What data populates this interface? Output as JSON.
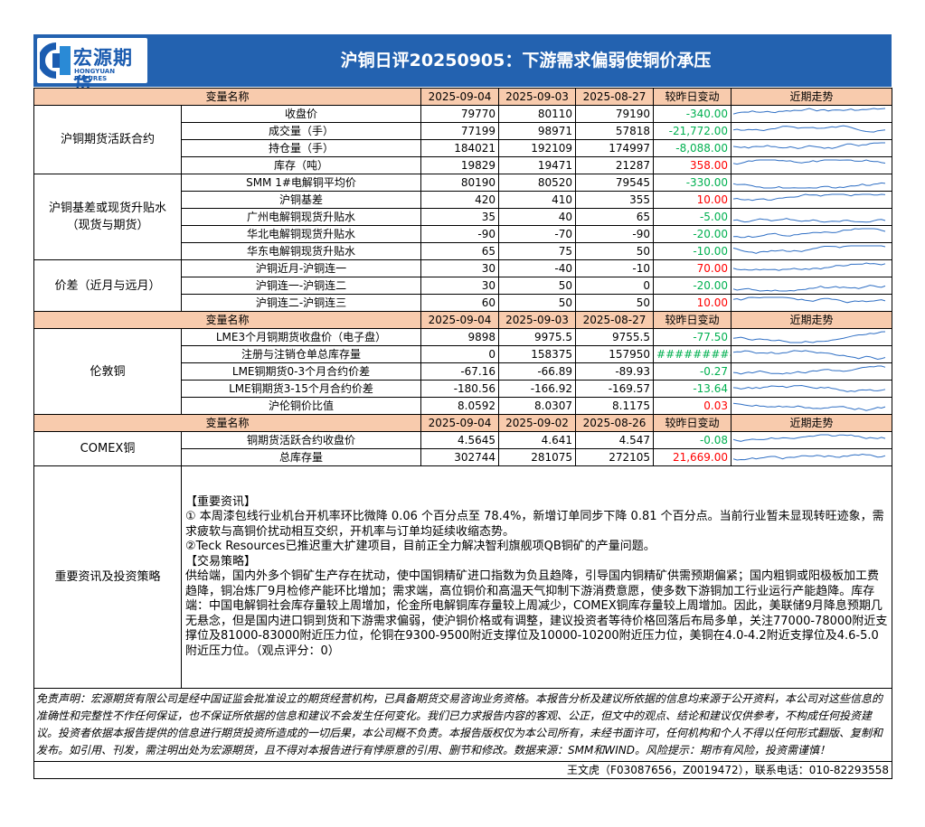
{
  "header": {
    "logo_cn": "宏源期货",
    "logo_en": "HONGYUAN FUTURES",
    "title": "沪铜日评20250905：下游需求偏弱使铜价承压"
  },
  "table": {
    "sections": [
      {
        "header": [
          "变量名称",
          "2025-09-04",
          "2025-09-03",
          "2025-08-27",
          "较昨日变动",
          "近期走势"
        ],
        "groups": [
          {
            "name": [
              "沪铜期货活跃合约"
            ],
            "rows": [
              [
                "收盘价",
                "79770",
                "80110",
                "79190",
                "-340.00"
              ],
              [
                "成交量（手）",
                "77199",
                "98971",
                "57818",
                "-21,772.00"
              ],
              [
                "持仓量（手）",
                "184021",
                "192109",
                "174997",
                "-8,088.00"
              ],
              [
                "库存（吨）",
                "19829",
                "19471",
                "21287",
                "358.00"
              ]
            ]
          },
          {
            "name": [
              "沪铜基差或现货升贴水",
              "（现货与期货）"
            ],
            "rows": [
              [
                "SMM 1#电解铜平均价",
                "80190",
                "80520",
                "79545",
                "-330.00"
              ],
              [
                "沪铜基差",
                "420",
                "410",
                "355",
                "10.00"
              ],
              [
                "广州电解铜现货升贴水",
                "35",
                "40",
                "65",
                "-5.00"
              ],
              [
                "华北电解铜现货升贴水",
                "-90",
                "-70",
                "-90",
                "-20.00"
              ],
              [
                "华东电解铜现货升贴水",
                "65",
                "75",
                "50",
                "-10.00"
              ]
            ]
          },
          {
            "name": [
              "价差（近月与远月）"
            ],
            "rows": [
              [
                "沪铜近月-沪铜连一",
                "30",
                "-40",
                "-10",
                "70.00"
              ],
              [
                "沪铜连一-沪铜连二",
                "30",
                "50",
                "0",
                "-20.00"
              ],
              [
                "沪铜连二-沪铜连三",
                "60",
                "50",
                "50",
                "10.00"
              ]
            ]
          }
        ]
      },
      {
        "header": [
          "变量名称",
          "2025-09-04",
          "2025-09-03",
          "2025-08-27",
          "较昨日变动",
          "近期走势"
        ],
        "groups": [
          {
            "name": [
              "伦敦铜"
            ],
            "rows": [
              [
                "LME3个月铜期货收盘价（电子盘）",
                "9898",
                "9975.5",
                "9755.5",
                "-77.50"
              ],
              [
                "注册与注销仓单总库存量",
                "0",
                "158375",
                "157950",
                "##########"
              ],
              [
                "LME铜期货0-3个月合约价差",
                "-67.16",
                "-66.89",
                "-89.93",
                "-0.27"
              ],
              [
                "LME铜期货3-15个月合约价差",
                "-180.56",
                "-166.92",
                "-169.57",
                "-13.64"
              ],
              [
                "沪伦铜价比值",
                "8.0592",
                "8.0307",
                "8.1175",
                "0.03"
              ]
            ]
          }
        ]
      },
      {
        "header": [
          "变量名称",
          "2025-09-04",
          "2025-09-02",
          "2025-08-26",
          "较昨日变动",
          "近期走势"
        ],
        "groups": [
          {
            "name": [
              "COMEX铜"
            ],
            "rows": [
              [
                "铜期货活跃合约收盘价",
                "4.5645",
                "4.641",
                "4.547",
                "-0.08"
              ],
              [
                "总库存量",
                "302744",
                "281075",
                "272105",
                "21,669.00"
              ]
            ]
          }
        ]
      }
    ]
  },
  "strategy": {
    "label": "重要资讯及投资策略",
    "paragraphs": [
      "【重要资讯】",
      "① 本周漆包线行业机台开机率环比微降 0.06 个百分点至 78.4%，新增订单同步下降 0.81 个百分点。当前行业暂未显现转旺迹象，需求疲软与高铜价扰动相互交织，开机率与订单均延续收缩态势。",
      "②Teck Resources已推迟重大扩建项目，目前正全力解决智利旗舰项QB铜矿的产量问题。",
      "【交易策略】",
      "供给端，国内外多个铜矿生产存在扰动，使中国铜精矿进口指数为负且趋降，引导国内铜精矿供需预期偏紧；国内粗铜或阳极板加工费趋降，铜冶炼厂9月检修产能环比增加；需求端，高位铜价和高温天气抑制下游消费意愿，使多数下游铜加工行业运行产能趋降。库存端：中国电解铜社会库存量较上周增加，伦金所电解铜库存量较上周减少，COMEX铜库存量较上周增加。因此，美联储9月降息预期几无悬念，但是国内进口铜到货和下游需求偏弱，使沪铜价格或有调整，建议投资者等待价格回落后布局多单，关注77000-78000附近支撑位及81000-83000附近压力位，伦铜在9300-9500附近支撑位及10000-10200附近压力位，美铜在4.0-4.2附近支撑位及4.6-5.0附近压力位。（观点评分：0）"
    ]
  },
  "disclaimer": "免责声明：宏源期货有限公司是经中国证监会批准设立的期货经营机构，已具备期货交易咨询业务资格。本报告分析及建议所依据的信息均来源于公开资料，本公司对这些信息的准确性和完整性不作任何保证，也不保证所依据的信息和建议不会发生任何变化。我们已力求报告内容的客观、公正，但文中的观点、结论和建议仅供参考，不构成任何投资建议。投资者依据本报告提供的信息进行期货投资所造成的一切后果，本公司概不负责。本报告版权仅为本公司所有，未经书面许可，任何机构和个人不得以任何形式翻版、复制和发布。如引用、刊发，需注明出处为宏源期货，且不得对本报告进行有悖原意的引用、删节和修改。数据来源：SMM和WIND。风险提示：期市有风险，投资需谨慎！",
  "author": "王文虎（F03087656，Z0019472），联系电话：010-82293558"
}
